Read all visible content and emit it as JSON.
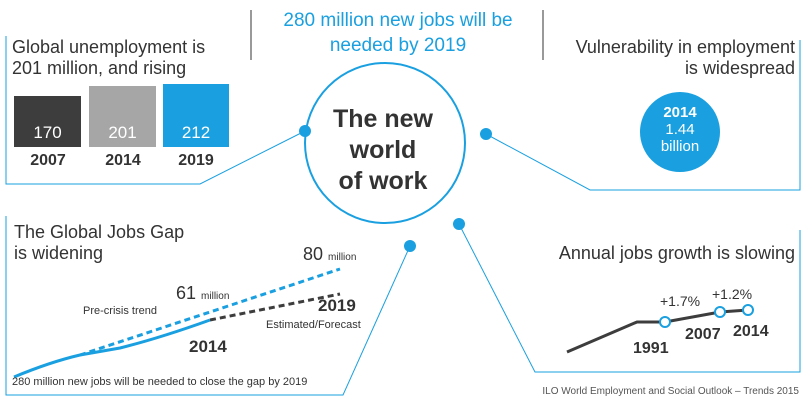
{
  "top_headline": {
    "line1": "280 million new jobs will be",
    "line2": "needed by 2019"
  },
  "unemployment": {
    "title_line1": "Global unemployment is",
    "title_line2": "201 million, and rising",
    "bars": [
      {
        "year": "2007",
        "value": "170",
        "color": "#3d3d3d"
      },
      {
        "year": "2014",
        "value": "201",
        "color": "#a6a6a6"
      },
      {
        "year": "2019",
        "value": "212",
        "color": "#1aa0e0"
      }
    ]
  },
  "center": {
    "line1": "The new",
    "line2": "world",
    "line3": "of work"
  },
  "vulnerability": {
    "title_line1": "Vulnerability in employment",
    "title_line2": "is widespread",
    "year": "2014",
    "value": "1.44",
    "unit": "billion"
  },
  "jobs_gap": {
    "title_line1": "The Global Jobs Gap",
    "title_line2": "is widening",
    "label_80": "80",
    "label_80_unit": "million",
    "label_61": "61",
    "label_61_unit": "million",
    "pre_crisis": "Pre-crisis trend",
    "year_2019": "2019",
    "estimated": "Estimated/Forecast",
    "year_2014": "2014",
    "footnote": "280 million new jobs will be needed to close the gap by 2019"
  },
  "growth": {
    "title": "Annual jobs growth is slowing",
    "label_a": "+1.7%",
    "label_b": "+1.2%",
    "year_1991": "1991",
    "year_2007": "2007",
    "year_2014": "2014"
  },
  "source": "ILO World Employment and Social Outlook – Trends 2015",
  "colors": {
    "accent": "#1aa0e0",
    "dark": "#3d3d3d",
    "grey": "#a6a6a6"
  }
}
